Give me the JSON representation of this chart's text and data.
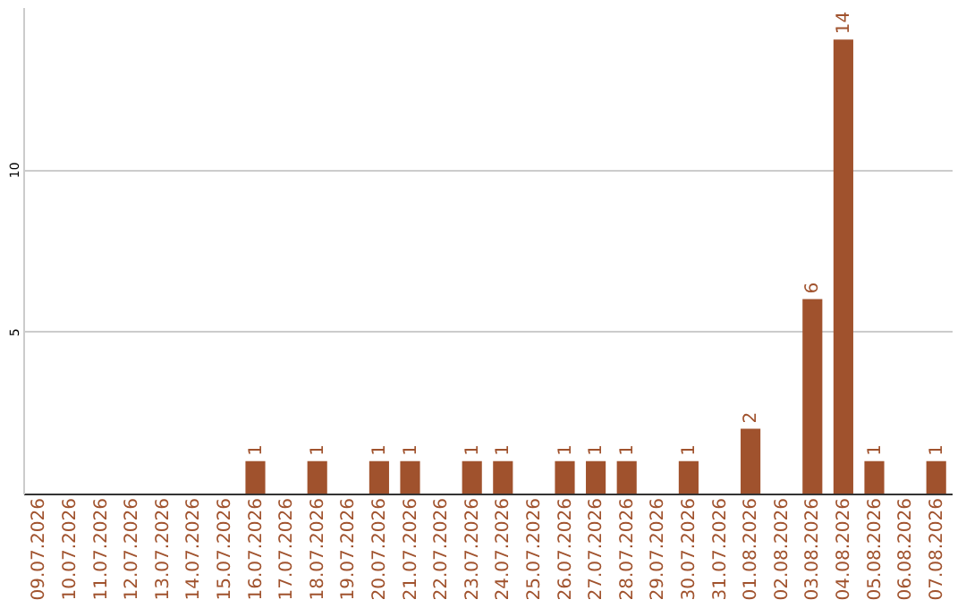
{
  "chart_data": {
    "type": "bar",
    "categories": [
      "09.07.2026",
      "10.07.2026",
      "11.07.2026",
      "12.07.2026",
      "13.07.2026",
      "14.07.2026",
      "15.07.2026",
      "16.07.2026",
      "17.07.2026",
      "18.07.2026",
      "19.07.2026",
      "20.07.2026",
      "21.07.2026",
      "22.07.2026",
      "23.07.2026",
      "24.07.2026",
      "25.07.2026",
      "26.07.2026",
      "27.07.2026",
      "28.07.2026",
      "29.07.2026",
      "30.07.2026",
      "31.07.2026",
      "01.08.2026",
      "02.08.2026",
      "03.08.2026",
      "04.08.2026",
      "05.08.2026",
      "06.08.2026",
      "07.08.2026"
    ],
    "values": [
      0,
      0,
      0,
      0,
      0,
      0,
      0,
      1,
      0,
      1,
      0,
      1,
      1,
      0,
      1,
      1,
      0,
      1,
      1,
      1,
      0,
      1,
      0,
      2,
      0,
      6,
      14,
      1,
      0,
      1
    ],
    "value_labels": [
      null,
      null,
      null,
      null,
      null,
      null,
      null,
      "1",
      null,
      "1",
      null,
      "1",
      "1",
      null,
      "1",
      "1",
      null,
      "1",
      "1",
      "1",
      null,
      "1",
      null,
      "2",
      null,
      "6",
      "14",
      "1",
      null,
      "1"
    ],
    "color": "#a0522d",
    "ylim": [
      0,
      15
    ],
    "yticks": [
      5,
      10
    ],
    "grid": "y"
  }
}
